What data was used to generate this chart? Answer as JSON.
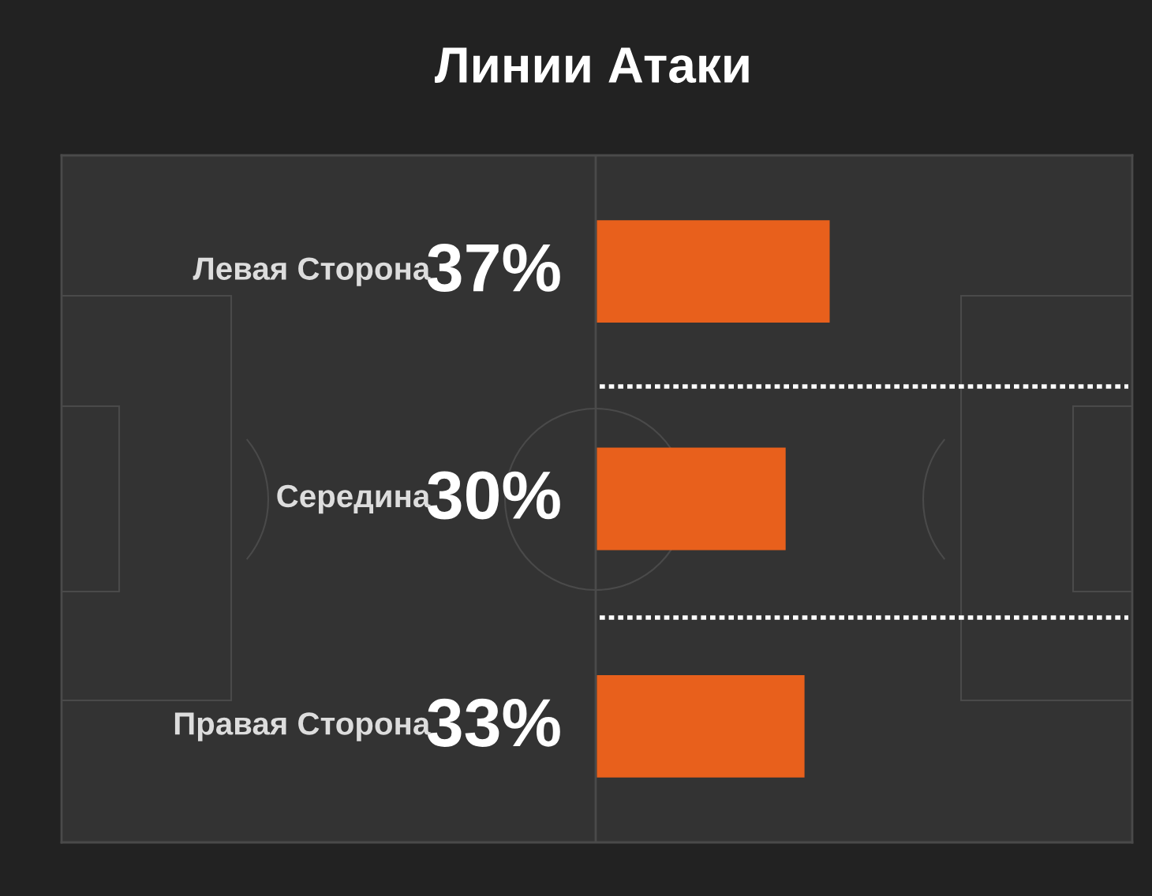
{
  "chart_data": {
    "type": "bar",
    "orientation": "horizontal",
    "title": "Линии Атаки",
    "categories": [
      "Левая Сторона",
      "Середина",
      "Правая Сторона"
    ],
    "values": [
      37,
      30,
      33
    ],
    "color": "#e8601c",
    "value_labels": [
      "37%",
      "30%",
      "33%"
    ],
    "tick_labels": "y"
  }
}
